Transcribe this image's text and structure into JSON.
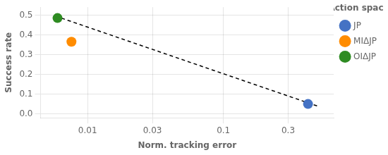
{
  "chart_data": {
    "type": "scatter",
    "xlabel": "Norm. tracking error",
    "ylabel": "Success rate",
    "legend_title": "Action space",
    "legend": "upper right",
    "log": "x",
    "grid": true,
    "xlim": [
      0.0045,
      0.65
    ],
    "ylim": [
      -0.02,
      0.54
    ],
    "xticks": [
      0.01,
      0.03,
      0.1,
      0.3
    ],
    "yticks": [
      {
        "value": 0.0,
        "label": "0.0"
      },
      0.1,
      0.2,
      0.3,
      0.4,
      0.5
    ],
    "series": [
      {
        "type": "line",
        "color": "#000000",
        "line_style": "dashed",
        "x": [
          0.0058,
          0.5
        ],
        "values": [
          0.495,
          0.038
        ]
      },
      {
        "name": "JP",
        "color": "#4472C4",
        "marker": "circle",
        "x": [
          0.42
        ],
        "values": [
          0.05
        ]
      },
      {
        "name": "MIΔJP",
        "color": "#FF8C00",
        "marker": "circle",
        "x": [
          0.0076
        ],
        "values": [
          0.365
        ]
      },
      {
        "name": "OIΔJP",
        "color": "#2E8B22",
        "marker": "circle",
        "x": [
          0.006
        ],
        "values": [
          0.485
        ]
      }
    ]
  }
}
